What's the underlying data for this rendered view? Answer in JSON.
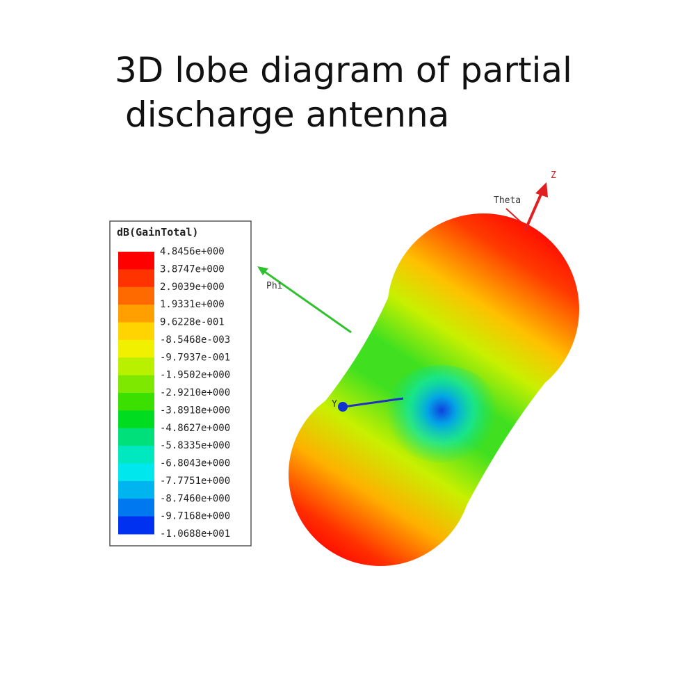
{
  "header": {
    "title_lines": [
      "3D lobe diagram of partial",
      "discharge antenna"
    ]
  },
  "legend": {
    "title": "dB(GainTotal)",
    "labels": [
      "4.8456e+000",
      "3.8747e+000",
      "2.9039e+000",
      "1.9331e+000",
      "9.6228e-001",
      "-8.5468e-003",
      "-9.7937e-001",
      "-1.9502e+000",
      "-2.9210e+000",
      "-3.8918e+000",
      "-4.8627e+000",
      "-5.8335e+000",
      "-6.8043e+000",
      "-7.7751e+000",
      "-8.7460e+000",
      "-9.7168e+000",
      "-1.0688e+001"
    ],
    "colors": [
      "#ff0000",
      "#ff3300",
      "#ff6a00",
      "#ffa000",
      "#ffd400",
      "#f0f000",
      "#b8f000",
      "#7ee800",
      "#3ce000",
      "#00dc20",
      "#00e07a",
      "#00e8c0",
      "#00e8ee",
      "#00b4f0",
      "#0078f0",
      "#0030f0"
    ]
  },
  "axes": {
    "phi": "Phi",
    "theta": "Theta",
    "z": "Z",
    "y": "Y"
  }
}
